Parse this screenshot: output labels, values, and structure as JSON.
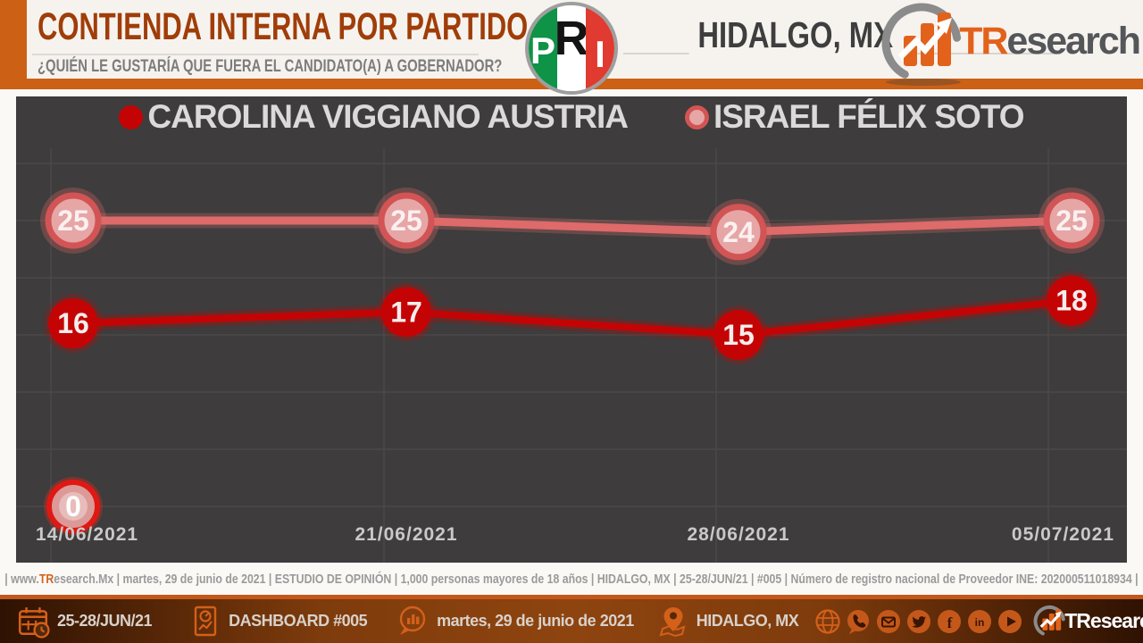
{
  "header": {
    "title": "CONTIENDA INTERNA POR PARTIDO",
    "subtitle": "¿QUIÉN LE GUSTARÍA QUE FUERA EL CANDIDATO(A) A GOBERNADOR?",
    "location": "HIDALGO, MX",
    "pri_logo_letters": [
      "P",
      "R",
      "I"
    ],
    "brand": {
      "prefix": "TR",
      "suffix": "esearch"
    }
  },
  "chart_data": {
    "type": "line",
    "categories": [
      "14/06/2021",
      "21/06/2021",
      "28/06/2021",
      "05/07/2021"
    ],
    "series": [
      {
        "name": "CAROLINA VIGGIANO AUSTRIA",
        "values": [
          16,
          17,
          15,
          18
        ],
        "color": "#C40404",
        "style": "solid"
      },
      {
        "name": "ISRAEL FÉLIX SOTO",
        "values": [
          25,
          25,
          24,
          25
        ],
        "color": "#DE6A6A",
        "style": "ring",
        "marker_fill": "#E6A6A6",
        "marker_stroke": "#D25454"
      }
    ],
    "extra_points": [
      {
        "x_index": 0,
        "value": 0,
        "label": "0"
      }
    ],
    "ylim": [
      0,
      30
    ],
    "grid": true,
    "legend_position": "top"
  },
  "footer": {
    "source_prefix": "| www.",
    "source_brand": "TR",
    "source_rest": "esearch.Mx | martes, 29 de junio de 2021 | ESTUDIO DE OPINIÓN | 1,000 personas mayores de 18 años | HIDALGO, MX | 25-28/JUN/21 | #005 | Número de registro nacional de Proveedor INE: 202000511018934  |"
  },
  "bottombar": {
    "date_range": "25-28/JUN/21",
    "dashboard": "DASHBOARD #005",
    "date": "martes, 29 de junio de 2021",
    "location": "HIDALGO, MX",
    "social": [
      "globe",
      "phone",
      "email",
      "twitter",
      "facebook",
      "linkedin",
      "youtube"
    ],
    "brand": {
      "prefix": "TR",
      "suffix": "esearch"
    }
  },
  "colors": {
    "accent_orange": "#CC6115",
    "title_brown": "#A03D08",
    "chart_bg": "#3E3C3C",
    "grid": "#4A4848",
    "series_dark_red": "#C40404",
    "series_light_red": "#DE6A6A",
    "bottom_bar_dark": "#2E1202",
    "bottom_bar_light": "#8E440F"
  }
}
